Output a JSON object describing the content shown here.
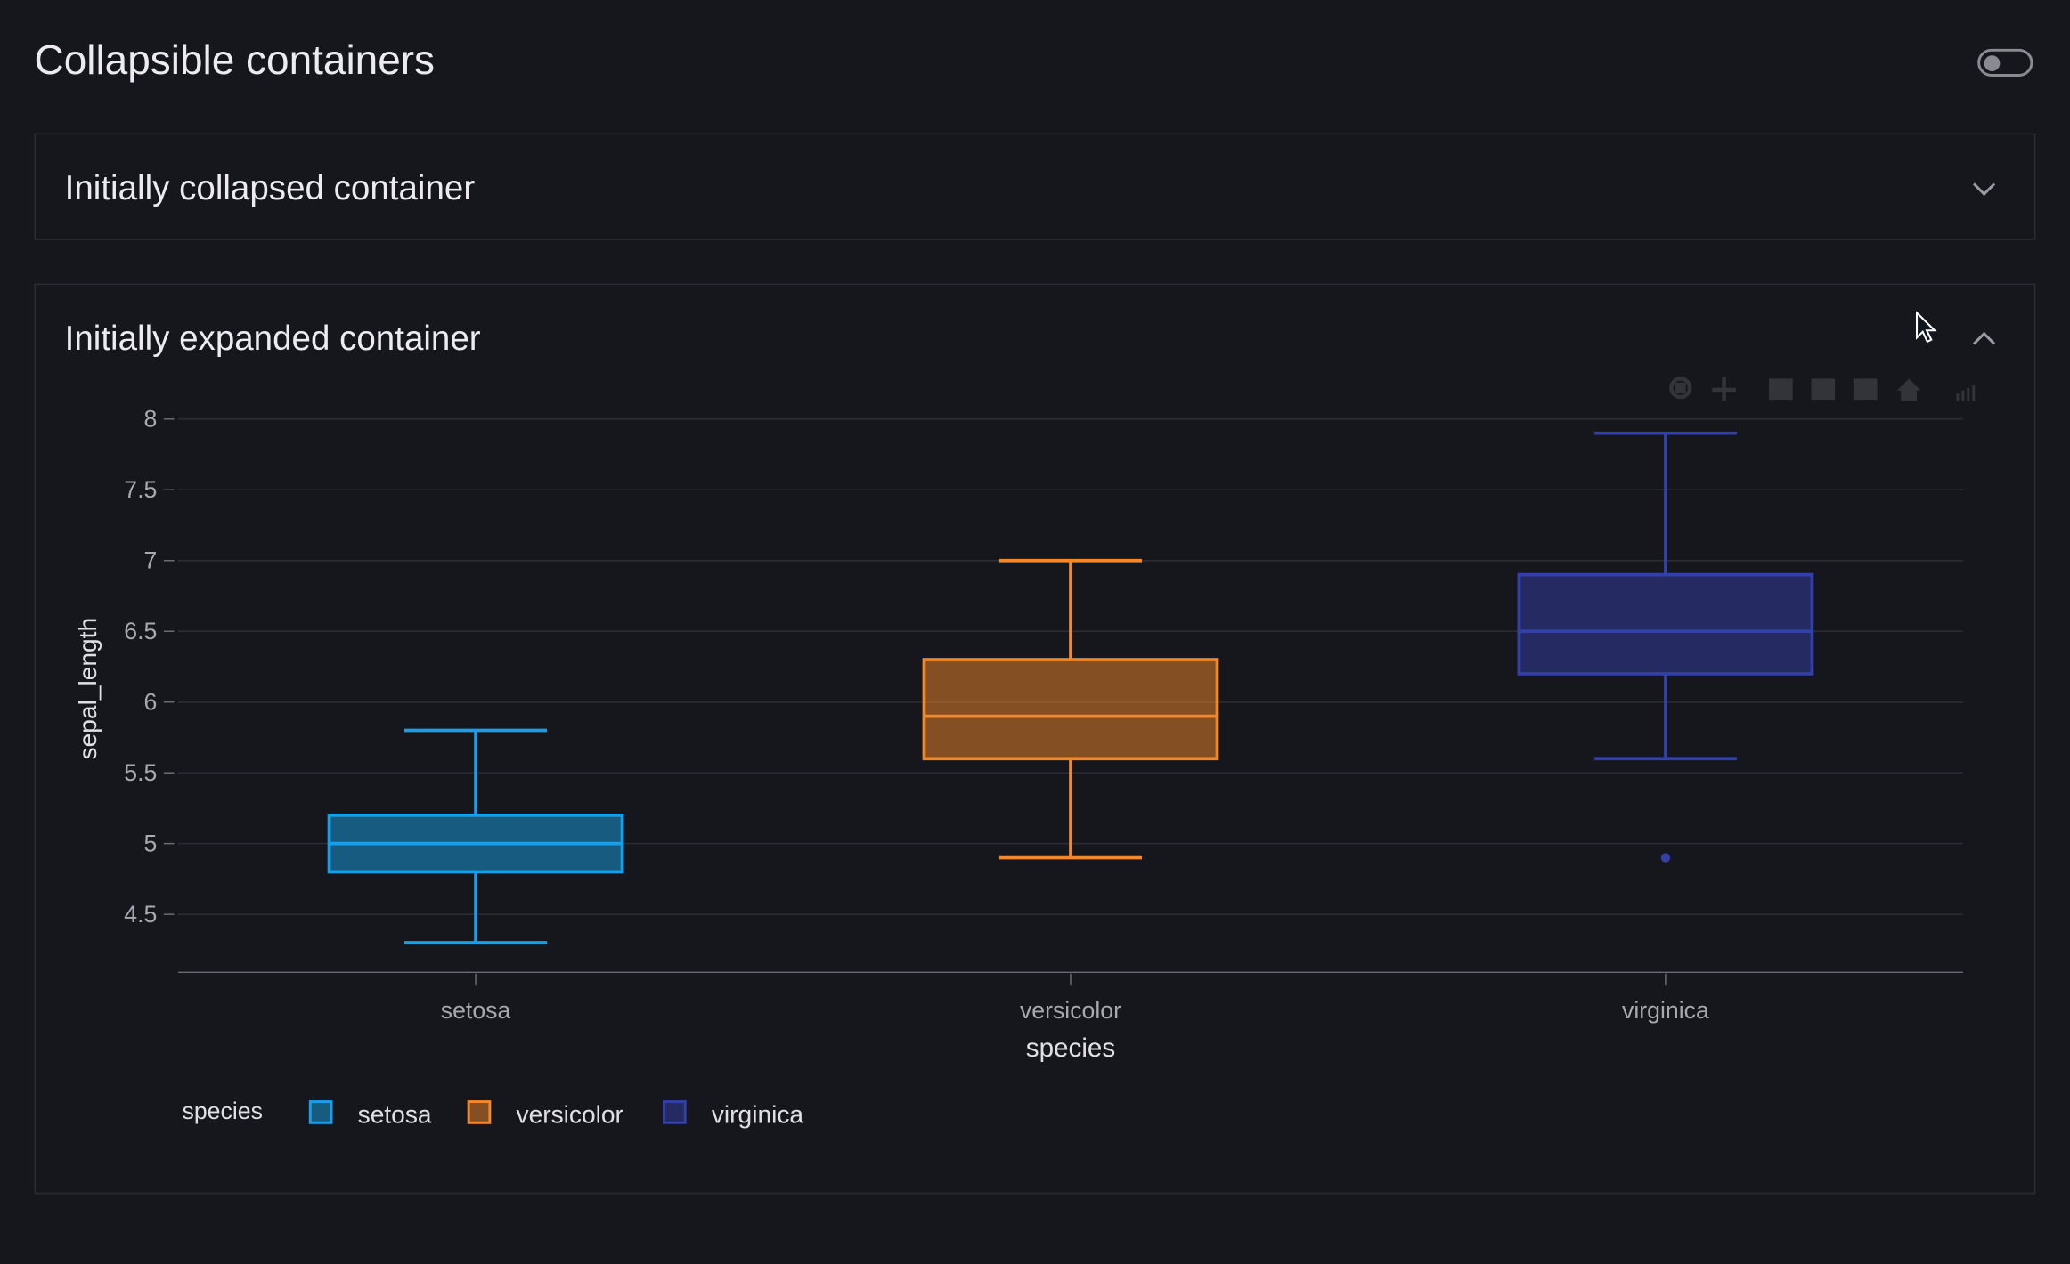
{
  "page": {
    "title": "Collapsible containers",
    "theme_toggle_on": false
  },
  "containers": [
    {
      "title": "Initially collapsed container",
      "expanded": false
    },
    {
      "title": "Initially expanded container",
      "expanded": true
    }
  ],
  "modebar": {
    "icons": [
      "zoom-icon",
      "pan-icon",
      "zoom-in-icon",
      "zoom-out-icon",
      "autoscale-icon",
      "reset-axes-icon",
      "plotly-logo-icon"
    ]
  },
  "chart_data": {
    "type": "box",
    "title": "",
    "xlabel": "species",
    "ylabel": "sepal_length",
    "categories": [
      "setosa",
      "versicolor",
      "virginica"
    ],
    "ylim": [
      4.09,
      8.09
    ],
    "yticks": [
      "4.5",
      "5",
      "5.5",
      "6",
      "6.5",
      "7",
      "7.5",
      "8"
    ],
    "ytick_values": [
      4.5,
      5,
      5.5,
      6,
      6.5,
      7,
      7.5,
      8
    ],
    "grid": true,
    "series": [
      {
        "name": "setosa",
        "color": "#1a9fe6",
        "min": 4.3,
        "q1": 4.8,
        "median": 5.0,
        "q3": 5.2,
        "max": 5.8,
        "outliers": []
      },
      {
        "name": "versicolor",
        "color": "#f2882a",
        "min": 4.9,
        "q1": 5.6,
        "median": 5.9,
        "q3": 6.3,
        "max": 7.0,
        "outliers": []
      },
      {
        "name": "virginica",
        "color": "#3340a8",
        "min": 5.6,
        "q1": 6.2,
        "median": 6.5,
        "q3": 6.9,
        "max": 7.9,
        "outliers": [
          4.9
        ]
      }
    ],
    "legend": {
      "title": "species",
      "placement": "bottom-left",
      "items": [
        "setosa",
        "versicolor",
        "virginica"
      ]
    }
  }
}
